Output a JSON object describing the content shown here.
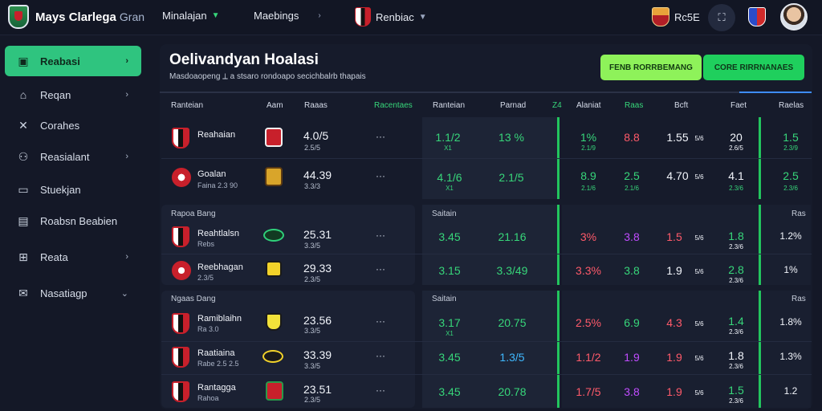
{
  "topbar": {
    "brand": "Mays Clarlega",
    "brand_accent": "Gran",
    "nav1": "Minalajan",
    "nav2": "Maebings",
    "nav3": "Renbiac",
    "right_label": "Rc5E",
    "search_icon": "⛶"
  },
  "sidebar": {
    "items": [
      {
        "label": "Reabasi",
        "active": true
      },
      {
        "label": "Reqan"
      },
      {
        "label": "Corahes"
      },
      {
        "label": "Reasialant"
      },
      {
        "label": "Stuekjan"
      },
      {
        "label": "Roabsn Beabien"
      },
      {
        "label": "Reata"
      },
      {
        "label": "Nasatiagp"
      }
    ]
  },
  "main": {
    "title": "Oelivandyan Hoalasi",
    "subtitle": "Masdoaopeng ⟂ a stsaro rondoapo secichbalrb thapais",
    "btn1": "FENB RORRBEMANG",
    "btn2": "CORE RIRRNANAES",
    "headers": {
      "h1": "Ranteian",
      "h2": "Aam",
      "h3": "Raaas",
      "h4": "Racentaes",
      "h5": "Ranteian",
      "h6": "Parnad",
      "h7": "Z4",
      "h8": "Alaniat",
      "h9": "Raas",
      "h10": "Bcft",
      "h11": "Faet",
      "h12": "Raelas"
    },
    "sections": {
      "s2_label": "Rapoa Bang",
      "s2_right": "Saitain",
      "s2_tag": "Ras",
      "s3_label": "Ngaas Dang",
      "s3_right": "Saitain",
      "s3_tag": "Ras"
    },
    "rows": [
      {
        "team": "Reahaian",
        "sub": "",
        "v": "4.0/5",
        "vs": "2.5/5",
        "c1": "1.1/2",
        "c1s": "X1",
        "c2": "13 %",
        "c3": "1%",
        "c3s": "2.1/9",
        "c4": "8.8",
        "c5": "1.55",
        "c5s": "5/6",
        "c6": "20",
        "c6s": "2.6/5",
        "c7": "1.5",
        "c7s": "2.3/9"
      },
      {
        "team": "Goalan",
        "sub": "Faina 2.3 90",
        "v": "44.39",
        "vs": "3.3/3",
        "c1": "4.1/6",
        "c1s": "X1",
        "c2": "2.1/5",
        "c3": "8.9",
        "c3s": "2.1/6",
        "c4": "2.5",
        "c4s": "2.1/6",
        "c5": "4.70",
        "c5s": "5/6",
        "c6": "4.1",
        "c6s": "2.3/6",
        "c7": "2.5",
        "c7s": "2.3/6"
      },
      {
        "team": "Reahtlalsn",
        "sub": "Rebs",
        "v": "25.31",
        "vs": "3.3/5",
        "c1": "3.45",
        "c2": "21.16",
        "c3": "3%",
        "c4": "3.8",
        "c5": "1.5",
        "c5s": "5/6",
        "c6": "1.8",
        "c6s": "2.3/6",
        "c7": "1.2%"
      },
      {
        "team": "Reebhagan",
        "sub": "2.3/5",
        "v": "29.33",
        "vs": "2.3/5",
        "c1": "3.15",
        "c2": "3.3/49",
        "c3": "3.3%",
        "c4": "3.8",
        "c5": "1.9",
        "c5s": "5/6",
        "c6": "2.8",
        "c6s": "2.3/6",
        "c7": "1%"
      },
      {
        "team": "Ramiblaihn",
        "sub": "Ra 3.0",
        "v": "23.56",
        "vs": "3.3/5",
        "c1": "3.17",
        "c1s": "X1",
        "c2": "20.75",
        "c3": "2.5%",
        "c4": "6.9",
        "c5": "4.3",
        "c5s": "5/6",
        "c6": "1.4",
        "c6s": "2.3/6",
        "c7": "1.8%"
      },
      {
        "team": "Raatiaina",
        "sub": "Rabe 2.5 2.5",
        "v": "33.39",
        "vs": "3.3/5",
        "c1": "3.45",
        "c2": "1.3/5",
        "c3": "1.1/2",
        "c4": "1.9",
        "c5": "1.9",
        "c5s": "5/6",
        "c6": "1.8",
        "c6s": "2.3/6",
        "c7": "1.3%"
      },
      {
        "team": "Rantagga",
        "sub": "Rahoa",
        "v": "23.51",
        "vs": "2.3/5",
        "c1": "3.45",
        "c2": "20.78",
        "c3": "1.7/5",
        "c4": "3.8",
        "c5": "1.9",
        "c5s": "5/6",
        "c6": "1.5",
        "c6s": "2.3/6",
        "c7": "1.2"
      }
    ]
  }
}
